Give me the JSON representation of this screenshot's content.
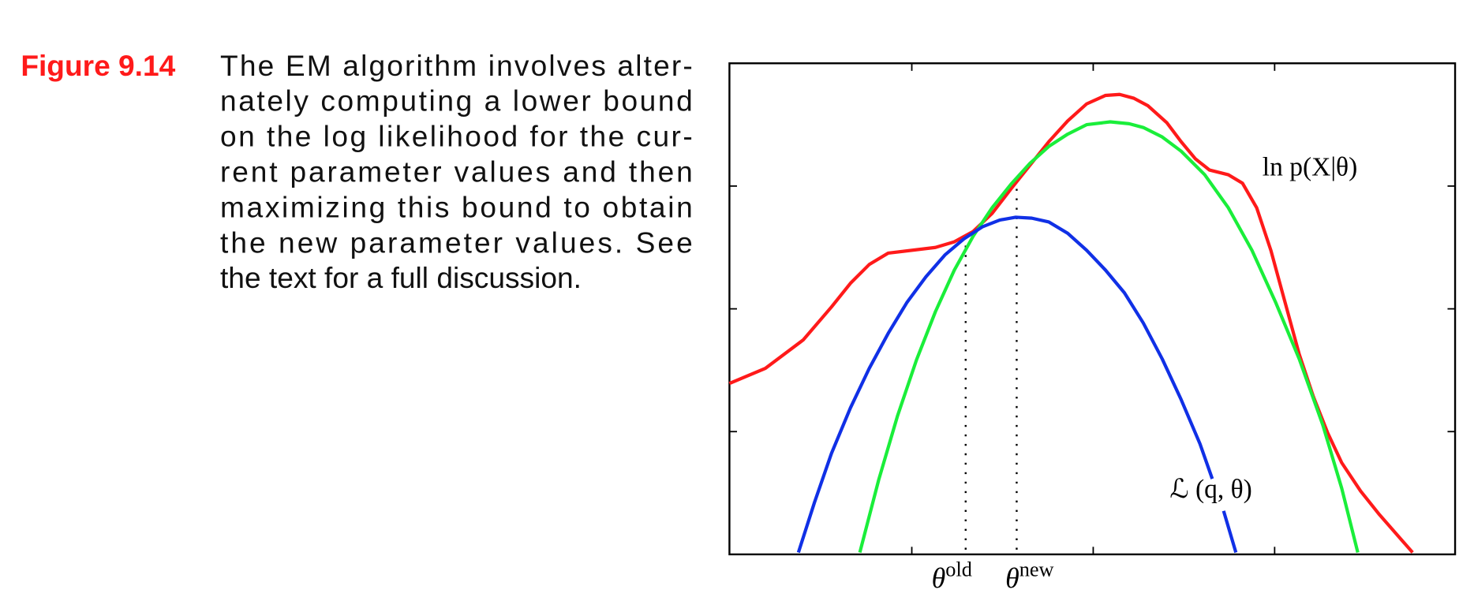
{
  "caption": {
    "label": "Figure 9.14",
    "lines": [
      "The EM algorithm involves alter-",
      "nately computing a lower bound",
      "on the log likelihood for the cur-",
      "rent parameter values and then",
      "maximizing this bound to obtain",
      "the new parameter values.  See",
      "the text for a full discussion."
    ]
  },
  "figure": {
    "log_likelihood_label": "ln p(X|θ)",
    "lower_bound_label": "ℒ (q, θ)",
    "theta_old": {
      "symbol": "θ",
      "superscript": "old"
    },
    "theta_new": {
      "symbol": "θ",
      "superscript": "new"
    }
  }
}
